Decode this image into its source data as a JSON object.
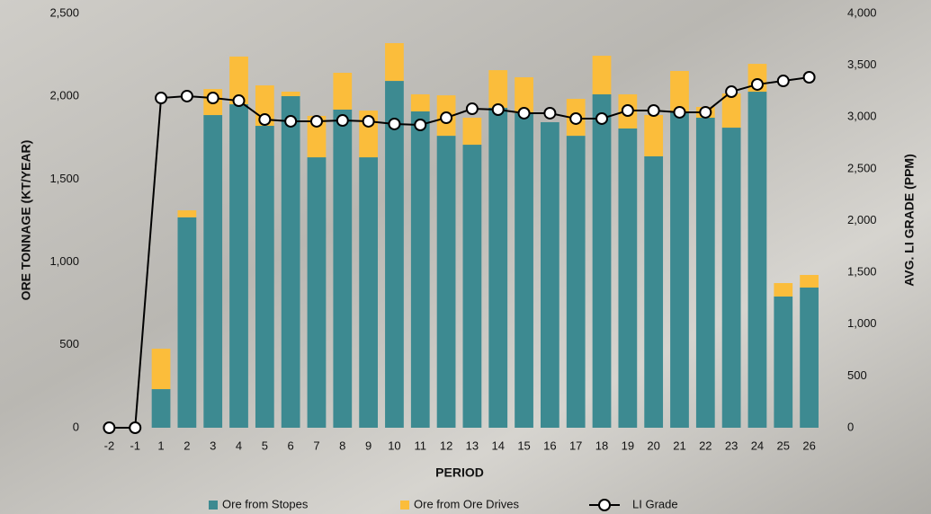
{
  "chart_data": {
    "type": "bar",
    "categories": [
      "-2",
      "-1",
      "1",
      "2",
      "3",
      "4",
      "5",
      "6",
      "7",
      "8",
      "9",
      "10",
      "11",
      "12",
      "13",
      "14",
      "15",
      "16",
      "17",
      "18",
      "19",
      "20",
      "21",
      "22",
      "23",
      "24",
      "25",
      "26"
    ],
    "series": [
      {
        "name": "Ore from Stopes",
        "color": "#3d8a91",
        "stack": true,
        "values": [
          0,
          0,
          233,
          1270,
          1887,
          1952,
          1822,
          2001,
          1632,
          1920,
          1632,
          2093,
          1909,
          1762,
          1708,
          1931,
          1898,
          1844,
          1762,
          2012,
          1806,
          1638,
          1904,
          1871,
          1811,
          2028,
          792,
          846
        ]
      },
      {
        "name": "Ore from Ore Drives",
        "color": "#fbbd3b",
        "stack": true,
        "values": [
          0,
          0,
          244,
          42,
          157,
          288,
          244,
          27,
          250,
          222,
          282,
          228,
          103,
          244,
          163,
          227,
          217,
          0,
          223,
          233,
          206,
          249,
          249,
          65,
          206,
          168,
          81,
          76
        ]
      },
      {
        "name": "LI Grade",
        "color": "#000000",
        "type": "line",
        "axis": "y2",
        "values": [
          0,
          0,
          3184,
          3202,
          3184,
          3158,
          2976,
          2959,
          2959,
          2967,
          2959,
          2933,
          2924,
          2993,
          3080,
          3072,
          3037,
          3037,
          2985,
          2985,
          3063,
          3063,
          3046,
          3046,
          3245,
          3315,
          3349,
          3384
        ]
      }
    ],
    "xlabel": "PERIOD",
    "ylabel": "ORE TONNAGE (KT/YEAR)",
    "y2label": "AVG. LI GRADE (PPM)",
    "ylim": [
      0,
      2500
    ],
    "yticks": [
      0,
      500,
      {
        "value": 1000,
        "label": "1,000"
      },
      {
        "value": 1500,
        "label": "1,500"
      },
      {
        "value": 2000,
        "label": "2,000"
      },
      {
        "value": 2500,
        "label": "2,500"
      }
    ],
    "y2lim": [
      0,
      4000
    ],
    "y2ticks": [
      0,
      500,
      {
        "value": 1000,
        "label": "1,000"
      },
      {
        "value": 1500,
        "label": "1,500"
      },
      {
        "value": 2000,
        "label": "2,000"
      },
      {
        "value": 2500,
        "label": "2,500"
      },
      {
        "value": 3000,
        "label": "3,000"
      },
      {
        "value": 3500,
        "label": "3,500"
      },
      {
        "value": 4000,
        "label": "4,000"
      }
    ],
    "grid": false,
    "legend": "bottom"
  }
}
